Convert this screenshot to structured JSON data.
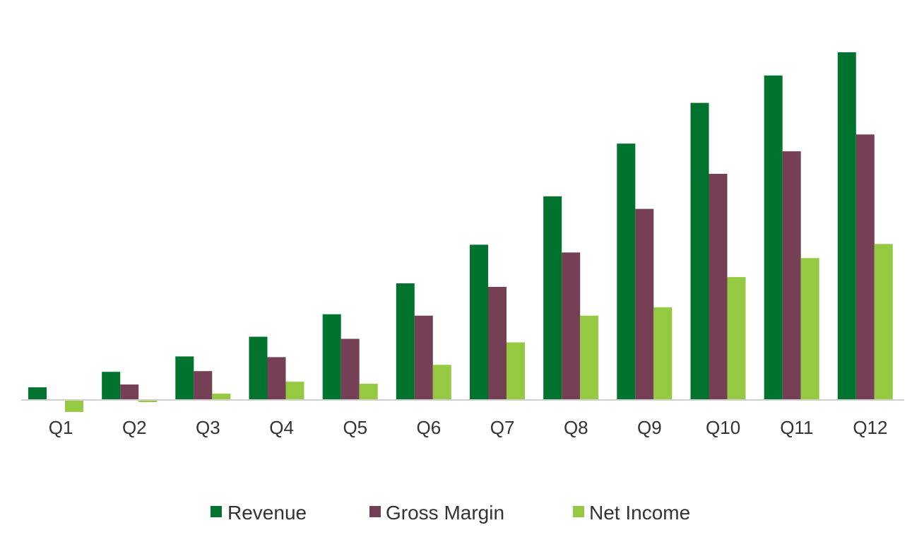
{
  "chart_data": {
    "type": "bar",
    "title": "",
    "xlabel": "",
    "ylabel": "",
    "categories": [
      "Q1",
      "Q2",
      "Q3",
      "Q4",
      "Q5",
      "Q6",
      "Q7",
      "Q8",
      "Q9",
      "Q10",
      "Q11",
      "Q12"
    ],
    "series": [
      {
        "name": "Revenue",
        "color": "#00742f",
        "values": [
          18,
          40,
          62,
          90,
          122,
          166,
          221,
          290,
          365,
          423,
          462,
          495
        ]
      },
      {
        "name": "Gross Margin",
        "color": "#753f56",
        "values": [
          0,
          22,
          41,
          61,
          87,
          120,
          161,
          210,
          272,
          322,
          354,
          378
        ]
      },
      {
        "name": "Net Income",
        "color": "#95c942",
        "values": [
          -17,
          -3,
          9,
          26,
          23,
          50,
          82,
          120,
          132,
          175,
          202,
          222
        ]
      }
    ],
    "ylim": [
      -60,
      530
    ],
    "grid": false,
    "legend_position": "bottom-center",
    "y_axis_labels_shown": false
  }
}
